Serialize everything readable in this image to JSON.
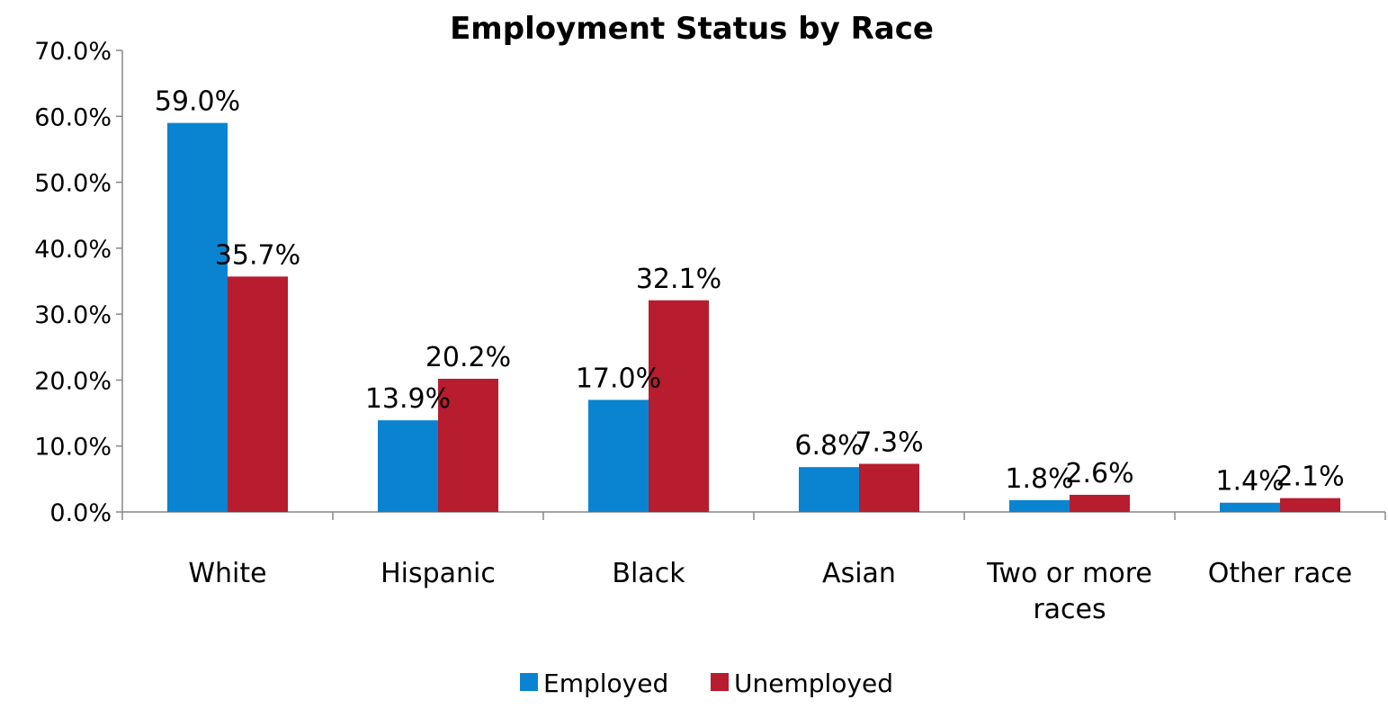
{
  "chart_data": {
    "type": "bar",
    "title": "Employment Status by Race",
    "xlabel": "",
    "ylabel": "",
    "categories": [
      [
        "White"
      ],
      [
        "Hispanic"
      ],
      [
        "Black"
      ],
      [
        "Asian"
      ],
      [
        "Two or more",
        "races"
      ],
      [
        "Other race"
      ]
    ],
    "series": [
      {
        "name": "Employed",
        "color": "#0a84d0",
        "values": [
          59.0,
          13.9,
          17.0,
          6.8,
          1.8,
          1.4
        ],
        "labels": [
          "59.0%",
          "13.9%",
          "17.0%",
          "6.8%",
          "1.8%",
          "1.4%"
        ]
      },
      {
        "name": "Unemployed",
        "color": "#b71c2f",
        "values": [
          35.7,
          20.2,
          32.1,
          7.3,
          2.6,
          2.1
        ],
        "labels": [
          "35.7%",
          "20.2%",
          "32.1%",
          "7.3%",
          "2.6%",
          "2.1%"
        ]
      }
    ],
    "ylim": [
      0,
      70
    ],
    "yticks": [
      0,
      10,
      20,
      30,
      40,
      50,
      60,
      70
    ],
    "ytick_labels": [
      "0.0%",
      "10.0%",
      "20.0%",
      "30.0%",
      "40.0%",
      "50.0%",
      "60.0%",
      "70.0%"
    ],
    "grid": false,
    "legend_position": "bottom"
  }
}
